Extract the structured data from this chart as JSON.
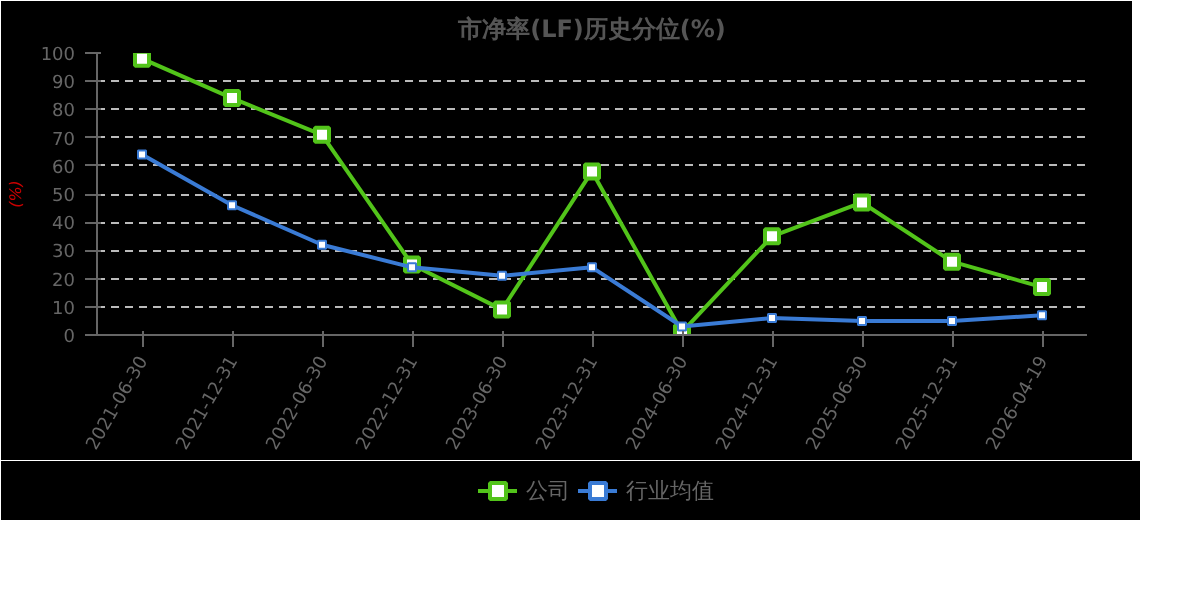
{
  "chart_data": {
    "type": "line",
    "title": "市净率(LF)历史分位(%)",
    "ylabel": "(%)",
    "categories": [
      "2021-06-30",
      "2021-12-31",
      "2022-06-30",
      "2022-12-31",
      "2023-06-30",
      "2023-12-31",
      "2024-06-30",
      "2024-12-31",
      "2025-06-30",
      "2025-12-31",
      "2026-04-19"
    ],
    "series": [
      {
        "name": "公司",
        "color": "#52c41a",
        "values": [
          98,
          84,
          71,
          25,
          9,
          58,
          1,
          35,
          47,
          26,
          17
        ]
      },
      {
        "name": "行业均值",
        "color": "#3a7bd5",
        "values": [
          64,
          46,
          32,
          24,
          21,
          24,
          3,
          6,
          5,
          5,
          7
        ]
      }
    ],
    "ylim": [
      0,
      100
    ],
    "yticks": [
      0,
      10,
      20,
      30,
      40,
      50,
      60,
      70,
      80,
      90,
      100
    ],
    "grid": "y",
    "legend": "bottom",
    "marker": "square",
    "line_style": "solid"
  }
}
